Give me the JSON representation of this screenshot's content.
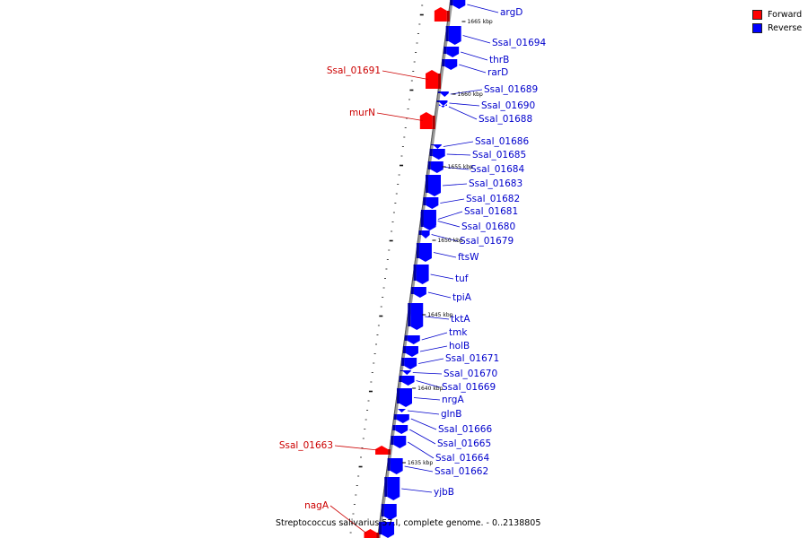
{
  "legend": {
    "forward_label": "Forward",
    "reverse_label": "Reverse",
    "forward_color": "#ff0000",
    "reverse_color": "#0000ff"
  },
  "caption": "Streptococcus salivarius 57.I, complete genome. - 0..2138805",
  "genes_forward": [
    {
      "name": "Ssal_01691"
    },
    {
      "name": "murN"
    },
    {
      "name": "Ssal_01663"
    },
    {
      "name": "nagA"
    }
  ],
  "genes_reverse": [
    {
      "name": "argD"
    },
    {
      "name": "Ssal_01694"
    },
    {
      "name": "thrB"
    },
    {
      "name": "rarD"
    },
    {
      "name": "Ssal_01689"
    },
    {
      "name": "Ssal_01690"
    },
    {
      "name": "Ssal_01688"
    },
    {
      "name": "Ssal_01686"
    },
    {
      "name": "Ssal_01685"
    },
    {
      "name": "Ssal_01684"
    },
    {
      "name": "Ssal_01683"
    },
    {
      "name": "Ssal_01682"
    },
    {
      "name": "Ssal_01681"
    },
    {
      "name": "Ssal_01680"
    },
    {
      "name": "Ssal_01679"
    },
    {
      "name": "ftsW"
    },
    {
      "name": "tuf"
    },
    {
      "name": "tpiA"
    },
    {
      "name": "tktA"
    },
    {
      "name": "tmk"
    },
    {
      "name": "holB"
    },
    {
      "name": "Ssal_01671"
    },
    {
      "name": "Ssal_01670"
    },
    {
      "name": "Ssal_01669"
    },
    {
      "name": "nrgA"
    },
    {
      "name": "glnB"
    },
    {
      "name": "Ssal_01666"
    },
    {
      "name": "Ssal_01665"
    },
    {
      "name": "Ssal_01664"
    },
    {
      "name": "Ssal_01662"
    },
    {
      "name": "yjbB"
    }
  ],
  "scale_labels": [
    "1665 kbp",
    "1660 kbp",
    "1655 kbp",
    "1650 kbp",
    "1645 kbp",
    "1640 kbp",
    "1635 kbp"
  ]
}
